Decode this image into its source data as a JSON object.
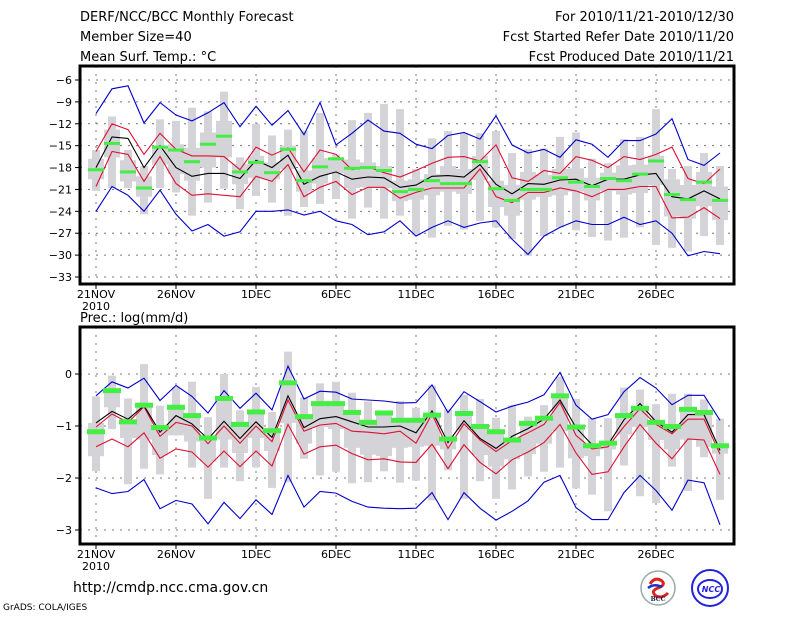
{
  "header": {
    "title": "DERF/NCC/BCC Monthly Forecast",
    "member_size": "Member Size=40",
    "variable": "Mean Surf. Temp.: °C",
    "period": "For 2010/11/21-2010/12/30",
    "started": "Fcst Started Refer Date 2010/11/20",
    "produced": "Fcst Produced Date 2010/11/21"
  },
  "footer": {
    "url": "http://cmdp.ncc.cma.gov.cn",
    "credit": "GrADS: COLA/IGES",
    "logos": [
      "BCC",
      "NCC"
    ]
  },
  "colors": {
    "max_min": "#0000cc",
    "sd": "#dd1133",
    "mean": "#000000",
    "median": "#44ee44",
    "spread": "#d3d3d8"
  },
  "chart_data": [
    {
      "type": "line",
      "title": "Mean Surf. Temp.: °C",
      "xlabel": "",
      "ylabel": "°C",
      "ylim": [
        -34,
        -4
      ],
      "yticks": [
        -6,
        -9,
        -12,
        -15,
        -18,
        -21,
        -24,
        -27,
        -30,
        -33
      ],
      "xtick_labels": [
        "21NOV",
        "26NOV",
        "1DEC",
        "6DEC",
        "11DEC",
        "16DEC",
        "21DEC",
        "26DEC"
      ],
      "xtick_days": [
        0,
        5,
        10,
        15,
        20,
        25,
        30,
        35
      ],
      "year_label": "2010",
      "grid": true,
      "days": 40,
      "series": [
        {
          "name": "max",
          "color": "blue",
          "values": [
            -10.6,
            -7.2,
            -6.8,
            -11.9,
            -9.1,
            -10.8,
            -11.6,
            -10.5,
            -9.1,
            -12.4,
            -9.6,
            -12.2,
            -10.2,
            -13.5,
            -9.1,
            -14.9,
            -13.3,
            -11.5,
            -13.0,
            -13.3,
            -14.8,
            -15.4,
            -13.6,
            -13.2,
            -14.1,
            -10.9,
            -14.9,
            -16.0,
            -15.5,
            -16.6,
            -14.2,
            -14.8,
            -16.6,
            -14.3,
            -14.3,
            -13.4,
            -11.3,
            -16.9,
            -17.7,
            -16.0
          ]
        },
        {
          "name": "sd_upper",
          "color": "red",
          "values": [
            -15.8,
            -12.0,
            -12.8,
            -16.2,
            -13.3,
            -15.5,
            -16.4,
            -16.4,
            -16.5,
            -18.3,
            -15.2,
            -16.3,
            -15.3,
            -18.6,
            -15.6,
            -16.2,
            -18.3,
            -17.9,
            -18.7,
            -19.3,
            -18.4,
            -17.4,
            -16.6,
            -16.5,
            -17.1,
            -14.9,
            -19.4,
            -19.9,
            -18.4,
            -18.8,
            -16.5,
            -17.0,
            -18.0,
            -16.5,
            -16.9,
            -16.2,
            -15.2,
            -19.5,
            -20.2,
            -18.2
          ]
        },
        {
          "name": "mean",
          "color": "black",
          "values": [
            -18.0,
            -13.8,
            -14.0,
            -18.0,
            -15.0,
            -18.0,
            -19.2,
            -18.8,
            -18.8,
            -19.5,
            -17.0,
            -18.0,
            -16.3,
            -20.3,
            -19.2,
            -18.6,
            -19.6,
            -19.3,
            -19.4,
            -20.7,
            -20.4,
            -19.2,
            -19.1,
            -19.3,
            -17.6,
            -20.3,
            -21.6,
            -20.2,
            -20.3,
            -19.7,
            -19.6,
            -20.5,
            -19.6,
            -19.6,
            -19.0,
            -18.8,
            -22.0,
            -22.3,
            -21.2,
            -22.3
          ]
        },
        {
          "name": "sd_lower",
          "color": "red",
          "values": [
            -20.6,
            -15.8,
            -16.2,
            -19.9,
            -16.5,
            -20.2,
            -21.8,
            -21.6,
            -21.8,
            -22.0,
            -19.2,
            -19.9,
            -17.6,
            -22.0,
            -20.7,
            -19.9,
            -21.7,
            -20.7,
            -20.7,
            -22.2,
            -21.4,
            -20.8,
            -20.8,
            -20.8,
            -18.2,
            -22.0,
            -22.8,
            -21.4,
            -21.4,
            -20.8,
            -21.2,
            -22.0,
            -21.0,
            -21.0,
            -20.6,
            -20.6,
            -24.9,
            -24.8,
            -23.5,
            -25.0
          ]
        },
        {
          "name": "min",
          "color": "blue",
          "values": [
            -24.0,
            -20.6,
            -21.8,
            -24.0,
            -21.1,
            -24.4,
            -26.7,
            -25.8,
            -27.4,
            -26.8,
            -24.0,
            -24.0,
            -23.8,
            -24.5,
            -24.0,
            -25.3,
            -25.8,
            -27.2,
            -26.8,
            -25.3,
            -27.4,
            -26.2,
            -25.3,
            -26.2,
            -25.6,
            -25.3,
            -27.8,
            -29.9,
            -27.4,
            -26.2,
            -25.3,
            -25.8,
            -25.8,
            -24.8,
            -25.8,
            -25.3,
            -27.0,
            -30.1,
            -29.5,
            -29.8
          ]
        },
        {
          "name": "median",
          "color": "green",
          "values": [
            -18.3,
            -14.7,
            -18.6,
            -20.8,
            -15.2,
            -15.6,
            -17.2,
            -14.8,
            -13.7,
            -18.6,
            -17.3,
            -18.7,
            -15.5,
            -19.8,
            -17.9,
            -16.8,
            -18.1,
            -18.0,
            -18.4,
            -21.3,
            -21.0,
            -19.8,
            -20.2,
            -20.2,
            -17.2,
            -20.9,
            -22.5,
            -21.0,
            -21.0,
            -19.4,
            -20.0,
            -20.6,
            -19.5,
            -19.8,
            -18.9,
            -17.1,
            -21.7,
            -22.4,
            -20.0,
            -22.5
          ]
        },
        {
          "name": "range_high",
          "color": "gray",
          "values": [
            -15.6,
            -11.0,
            -15.6,
            -17.8,
            -11.4,
            -11.6,
            -9.8,
            -10.3,
            -7.6,
            -16.6,
            -12.0,
            -13.6,
            -12.8,
            -13.0,
            -10.5,
            -16.2,
            -11.5,
            -10.5,
            -9.3,
            -10.0,
            -18.2,
            -14.0,
            -13.0,
            -13.3,
            -13.3,
            -13.0,
            -16.0,
            -15.5,
            -15.4,
            -13.8,
            -13.2,
            -16.8,
            -17.4,
            -14.1,
            -13.8,
            -10.0,
            -18.2,
            -17.8,
            -16.0,
            -17.8
          ]
        },
        {
          "name": "range_low",
          "color": "gray",
          "values": [
            -21.2,
            -20.8,
            -20.8,
            -24.4,
            -20.8,
            -21.4,
            -24.6,
            -22.8,
            -20.9,
            -23.7,
            -21.9,
            -22.8,
            -24.6,
            -23.4,
            -23.0,
            -22.3,
            -25.0,
            -23.5,
            -25.0,
            -24.6,
            -27.3,
            -27.6,
            -26.0,
            -26.5,
            -25.3,
            -26.2,
            -27.8,
            -30.1,
            -27.4,
            -26.2,
            -26.6,
            -27.5,
            -28.0,
            -27.6,
            -26.2,
            -28.6,
            -29.0,
            -29.5,
            -27.4,
            -28.6
          ]
        },
        {
          "name": "iqr_high",
          "color": "gray",
          "values": [
            -16.8,
            -12.8,
            -17.0,
            -19.2,
            -15.2,
            -14.8,
            -15.3,
            -13.2,
            -11.6,
            -17.5,
            -16.4,
            -17.3,
            -15.0,
            -18.4,
            -16.7,
            -17.0,
            -16.9,
            -17.3,
            -17.8,
            -19.8,
            -19.6,
            -18.9,
            -17.8,
            -18.2,
            -16.4,
            -19.8,
            -20.4,
            -18.6,
            -19.0,
            -18.2,
            -18.1,
            -19.4,
            -18.7,
            -17.7,
            -17.6,
            -16.4,
            -19.6,
            -20.4,
            -18.6,
            -20.6
          ]
        },
        {
          "name": "iqr_low",
          "color": "gray",
          "values": [
            -19.6,
            -16.6,
            -19.9,
            -22.0,
            -17.6,
            -18.9,
            -19.8,
            -18.0,
            -16.6,
            -20.3,
            -19.4,
            -19.6,
            -18.2,
            -21.3,
            -20.2,
            -18.8,
            -20.8,
            -20.7,
            -20.8,
            -22.6,
            -22.4,
            -21.8,
            -21.3,
            -21.6,
            -19.7,
            -23.4,
            -24.6,
            -22.4,
            -22.0,
            -21.8,
            -21.3,
            -22.5,
            -21.2,
            -21.7,
            -21.5,
            -20.4,
            -24.7,
            -25.0,
            -23.3,
            -25.2
          ]
        }
      ]
    },
    {
      "type": "line",
      "title": "Prec.: log(mm/d)",
      "xlabel": "",
      "ylabel": "log(mm/d)",
      "ylim": [
        -3.3,
        0.9
      ],
      "yticks": [
        0,
        -1,
        -2,
        -3
      ],
      "xtick_labels": [
        "21NOV",
        "26NOV",
        "1DEC",
        "6DEC",
        "11DEC",
        "16DEC",
        "21DEC",
        "26DEC"
      ],
      "xtick_days": [
        0,
        5,
        10,
        15,
        20,
        25,
        30,
        35
      ],
      "year_label": "2010",
      "grid": true,
      "days": 40,
      "series": [
        {
          "name": "max",
          "color": "blue",
          "values": [
            -0.42,
            -0.15,
            -0.27,
            -0.08,
            -0.51,
            -0.22,
            -0.43,
            -0.75,
            -0.32,
            -0.66,
            -0.37,
            -0.69,
            0.15,
            -0.48,
            -0.33,
            -0.35,
            -0.48,
            -0.5,
            -0.52,
            -0.56,
            -0.55,
            -0.21,
            -0.74,
            -0.34,
            -0.53,
            -0.73,
            -0.62,
            -0.54,
            -0.4,
            0.03,
            -0.6,
            -0.87,
            -0.78,
            -0.34,
            -0.07,
            -0.27,
            -0.59,
            -0.41,
            -0.41,
            -0.89
          ]
        },
        {
          "name": "sd_upper",
          "color": "red",
          "values": [
            -1.02,
            -0.77,
            -0.93,
            -0.63,
            -1.2,
            -0.93,
            -1.0,
            -1.34,
            -1.0,
            -1.33,
            -1.0,
            -1.3,
            -0.5,
            -1.1,
            -0.98,
            -0.95,
            -1.1,
            -1.12,
            -1.15,
            -1.1,
            -1.33,
            -0.77,
            -1.43,
            -0.96,
            -1.27,
            -1.49,
            -1.28,
            -1.13,
            -0.97,
            -0.55,
            -1.18,
            -1.44,
            -1.4,
            -1.01,
            -0.67,
            -0.97,
            -1.15,
            -0.87,
            -0.87,
            -1.54
          ]
        },
        {
          "name": "mean",
          "color": "black",
          "values": [
            -0.94,
            -0.72,
            -0.87,
            -0.61,
            -1.12,
            -0.8,
            -0.96,
            -1.25,
            -0.91,
            -1.24,
            -0.92,
            -1.22,
            -0.42,
            -1.03,
            -0.86,
            -0.82,
            -0.92,
            -1.02,
            -1.02,
            -1.0,
            -1.13,
            -0.71,
            -1.32,
            -0.9,
            -1.24,
            -1.43,
            -1.2,
            -1.05,
            -0.87,
            -0.5,
            -1.03,
            -1.36,
            -1.36,
            -0.88,
            -0.57,
            -0.92,
            -1.12,
            -0.78,
            -0.78,
            -1.47
          ]
        },
        {
          "name": "sd_lower",
          "color": "red",
          "values": [
            -1.4,
            -1.25,
            -1.4,
            -1.13,
            -1.62,
            -1.44,
            -1.5,
            -1.79,
            -1.48,
            -1.78,
            -1.48,
            -1.77,
            -0.97,
            -1.54,
            -1.4,
            -1.37,
            -1.53,
            -1.65,
            -1.63,
            -1.69,
            -1.7,
            -1.35,
            -1.82,
            -1.36,
            -1.7,
            -1.92,
            -1.65,
            -1.5,
            -1.32,
            -0.97,
            -1.52,
            -1.93,
            -1.88,
            -1.4,
            -0.97,
            -1.33,
            -1.63,
            -1.25,
            -1.27,
            -1.93
          ]
        },
        {
          "name": "min",
          "color": "blue",
          "values": [
            -2.19,
            -2.3,
            -2.26,
            -2.03,
            -2.59,
            -2.43,
            -2.5,
            -2.88,
            -2.47,
            -2.78,
            -2.42,
            -2.7,
            -1.95,
            -2.56,
            -2.26,
            -2.29,
            -2.45,
            -2.56,
            -2.58,
            -2.59,
            -2.58,
            -2.28,
            -2.8,
            -2.28,
            -2.58,
            -2.81,
            -2.64,
            -2.44,
            -2.08,
            -1.95,
            -2.57,
            -2.8,
            -2.8,
            -2.28,
            -1.95,
            -2.24,
            -2.62,
            -2.04,
            -2.09,
            -2.9
          ]
        },
        {
          "name": "median",
          "color": "green",
          "values": [
            -1.11,
            -0.32,
            -0.92,
            -0.6,
            -1.03,
            -0.64,
            -0.8,
            -1.23,
            -0.47,
            -0.97,
            -0.73,
            -1.09,
            -0.17,
            -0.82,
            -0.57,
            -0.57,
            -0.74,
            -0.93,
            -0.75,
            -0.89,
            -0.89,
            -0.79,
            -1.25,
            -0.76,
            -1.01,
            -1.11,
            -1.27,
            -0.95,
            -0.85,
            -0.42,
            -1.02,
            -1.38,
            -1.33,
            -0.8,
            -0.66,
            -0.93,
            -1.01,
            -0.68,
            -0.74,
            -1.38
          ]
        },
        {
          "name": "range_high",
          "color": "gray",
          "values": [
            -0.43,
            -0.03,
            -0.47,
            0.19,
            -0.61,
            -0.25,
            -0.15,
            -0.83,
            0.0,
            -0.7,
            -0.25,
            -0.73,
            0.43,
            -0.45,
            -0.18,
            -0.15,
            -0.36,
            -0.53,
            -0.75,
            -0.52,
            -0.65,
            -0.22,
            -0.68,
            -0.4,
            -0.48,
            -0.84,
            -0.6,
            -0.82,
            -0.6,
            -0.05,
            -0.48,
            -0.85,
            -0.85,
            -0.26,
            -0.3,
            -0.58,
            -0.38,
            -0.38,
            -0.49,
            -0.86
          ]
        },
        {
          "name": "range_low",
          "color": "gray",
          "values": [
            -1.87,
            -1.06,
            -2.12,
            -1.82,
            -1.93,
            -1.18,
            -1.8,
            -2.4,
            -1.8,
            -2.06,
            -1.8,
            -2.19,
            -2.08,
            -1.63,
            -1.95,
            -1.88,
            -2.1,
            -2.08,
            -1.87,
            -2.09,
            -2.05,
            -2.43,
            -1.85,
            -2.4,
            -2.06,
            -2.4,
            -2.22,
            -1.97,
            -1.88,
            -1.8,
            -2.2,
            -2.32,
            -2.64,
            -1.76,
            -2.35,
            -2.48,
            -1.78,
            -2.25,
            -1.6,
            -2.42
          ]
        },
        {
          "name": "iqr_high",
          "color": "gray",
          "values": [
            -0.94,
            -0.31,
            -0.92,
            -0.58,
            -1.02,
            -0.62,
            -0.8,
            -1.2,
            -0.45,
            -0.98,
            -0.72,
            -1.08,
            -0.15,
            -0.8,
            -0.56,
            -0.56,
            -0.72,
            -0.92,
            -0.74,
            -0.88,
            -0.87,
            -0.78,
            -1.22,
            -0.75,
            -1.0,
            -1.1,
            -1.26,
            -0.94,
            -0.84,
            -0.41,
            -1.01,
            -1.36,
            -1.3,
            -0.79,
            -0.65,
            -0.92,
            -1.0,
            -0.66,
            -0.72,
            -1.36
          ]
        },
        {
          "name": "iqr_low",
          "color": "gray",
          "values": [
            -1.58,
            -0.64,
            -1.23,
            -1.26,
            -1.56,
            -1.18,
            -1.3,
            -1.68,
            -1.26,
            -1.52,
            -1.23,
            -1.48,
            -0.94,
            -1.34,
            -1.02,
            -1.06,
            -1.42,
            -1.55,
            -1.58,
            -1.42,
            -1.4,
            -1.38,
            -1.45,
            -1.08,
            -1.56,
            -1.78,
            -1.64,
            -1.54,
            -1.34,
            -1.1,
            -1.62,
            -1.58,
            -1.45,
            -1.16,
            -1.02,
            -1.27,
            -1.45,
            -1.26,
            -1.4,
            -1.53
          ]
        }
      ]
    }
  ]
}
